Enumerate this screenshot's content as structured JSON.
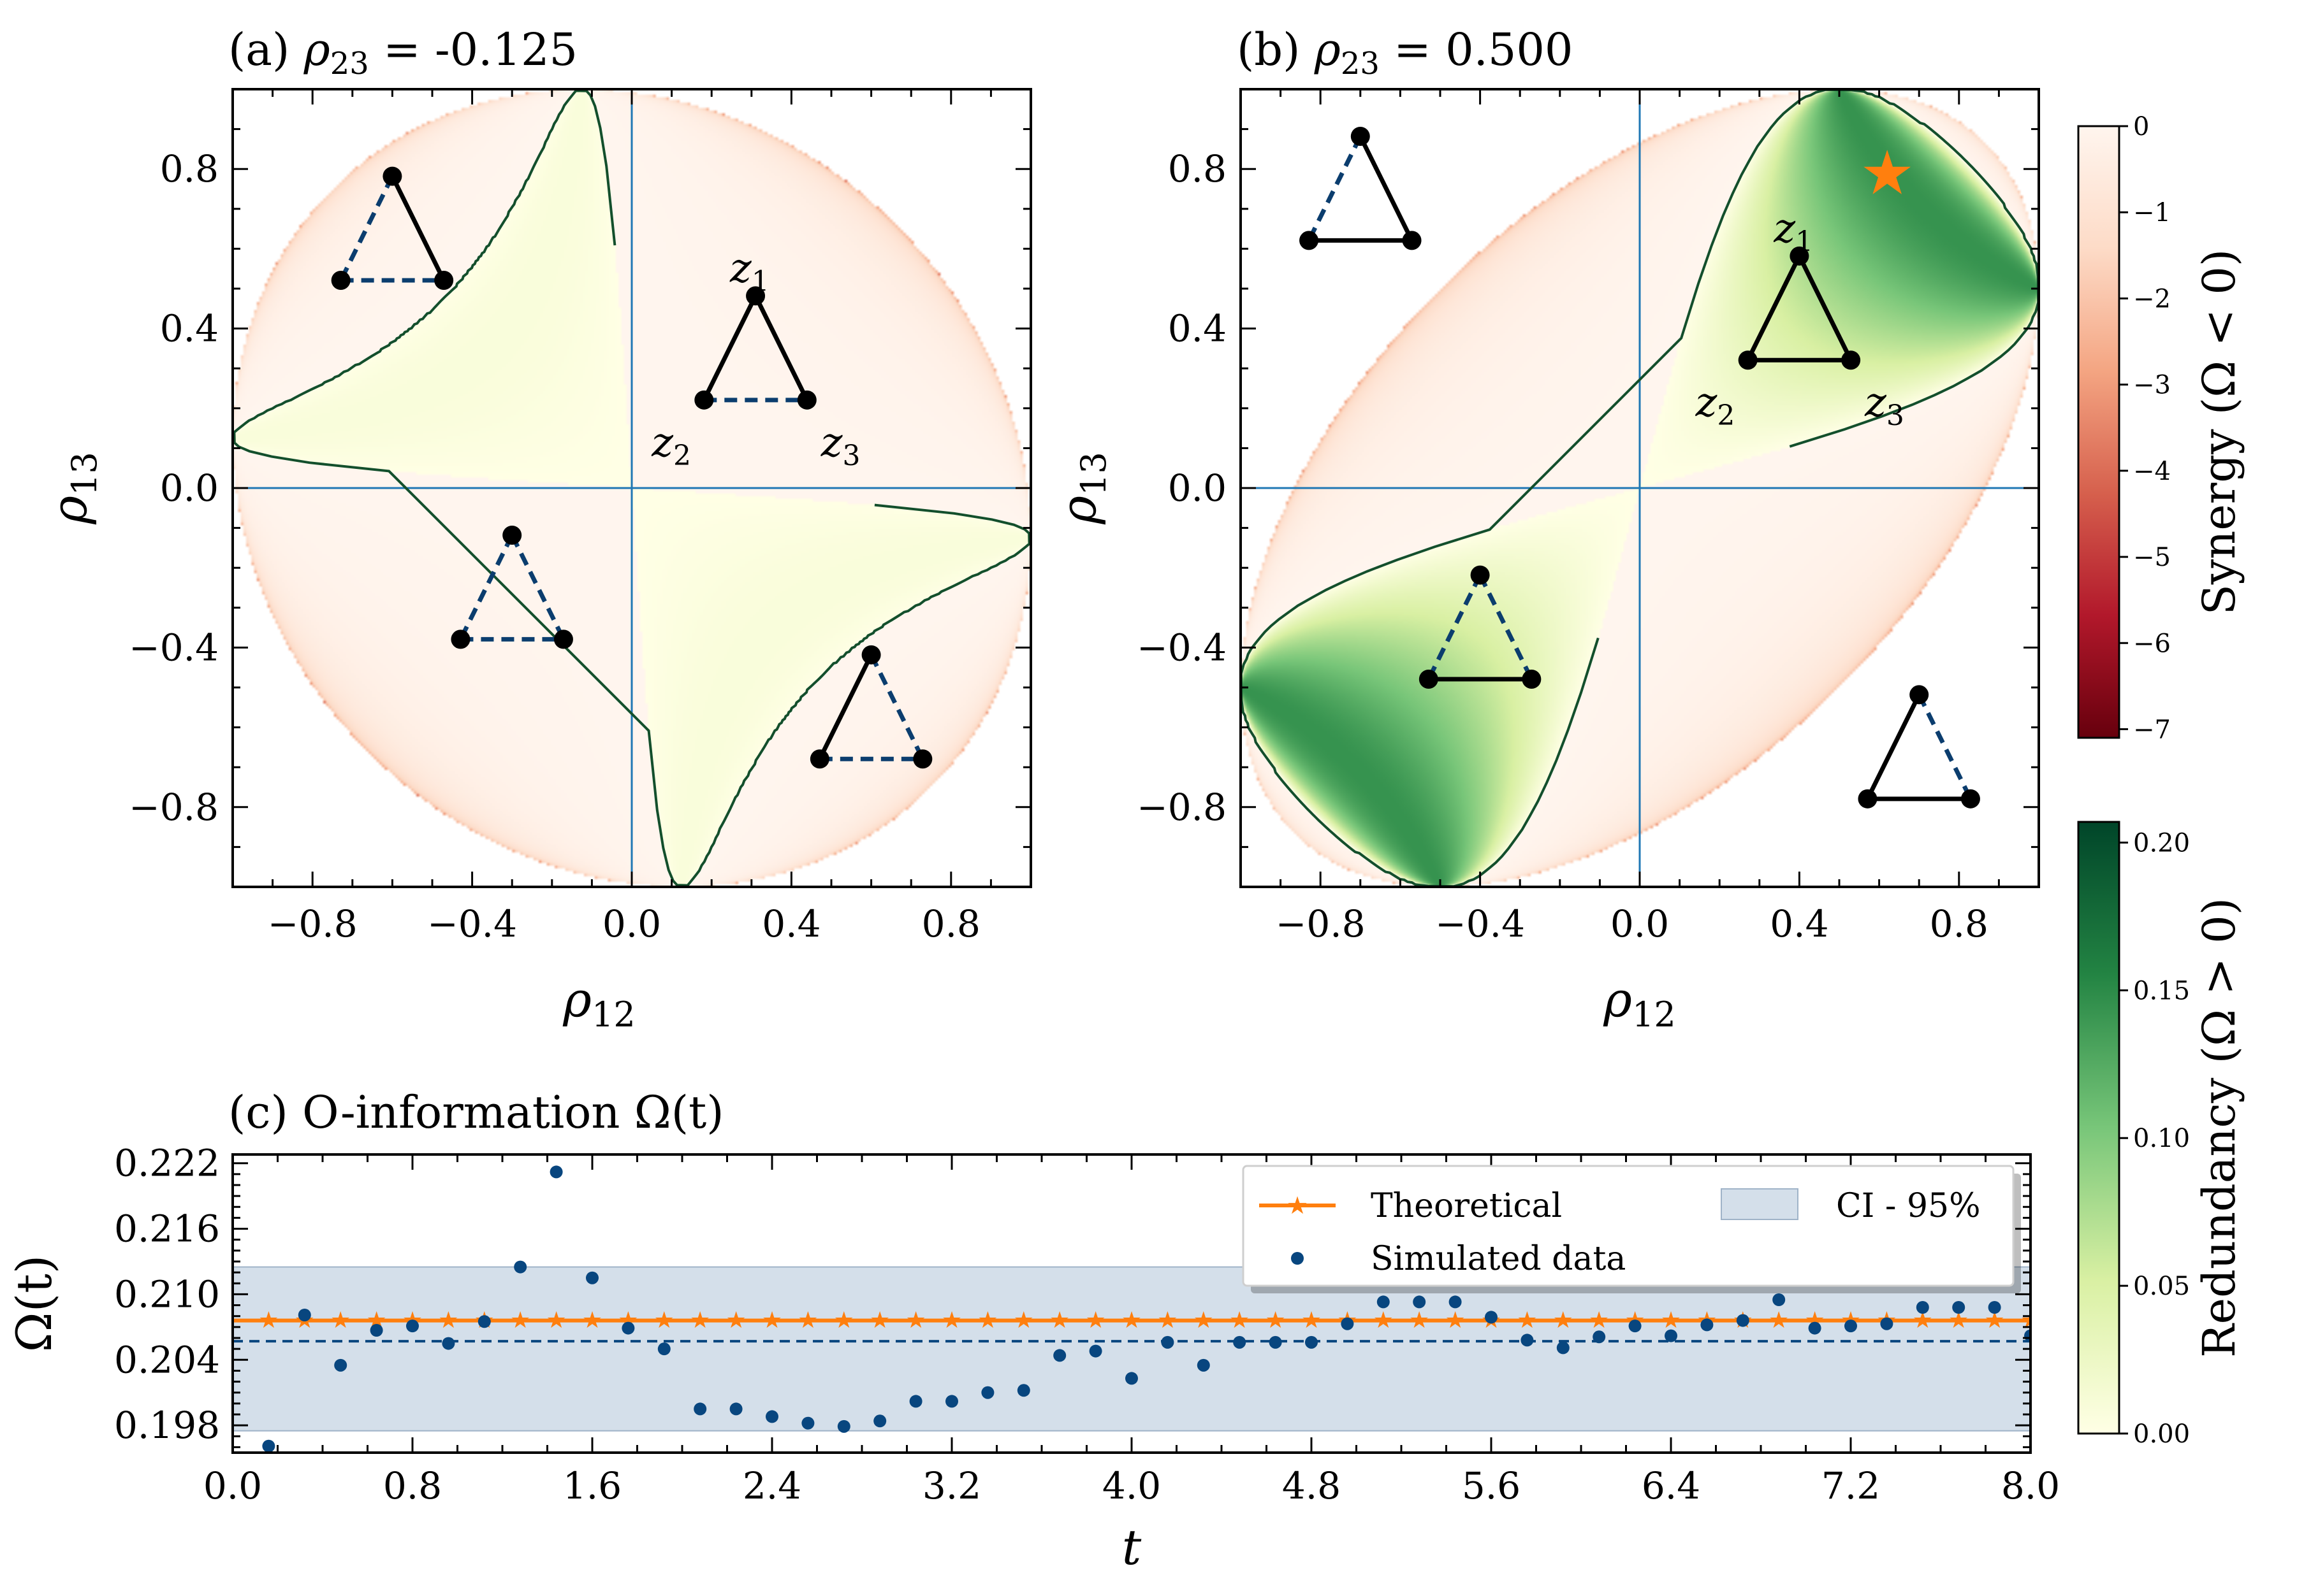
{
  "colors": {
    "synergy_stops": [
      "#67000d",
      "#b2182b",
      "#d6604d",
      "#f4a582",
      "#fddbc7",
      "#fff5ee"
    ],
    "redundancy_stops": [
      "#ffffe5",
      "#d9f0a3",
      "#78c679",
      "#238443",
      "#004529"
    ],
    "theory": "#ff7f0e",
    "sim": "#08467f",
    "axis_line": "#1f77b4",
    "boundary": "#134f2c"
  },
  "chart_data": [
    {
      "type": "heatmap",
      "title": "(a) ρ23 = -0.125",
      "title_prefix": "(a) ",
      "title_var": "ρ",
      "title_sub": "23",
      "title_value": " = -0.125",
      "rho23": -0.125,
      "xlabel": "ρ",
      "xlabel_sub": "12",
      "ylabel": "ρ",
      "ylabel_sub": "13",
      "xlim": [
        -1,
        1
      ],
      "ylim": [
        -1,
        1
      ],
      "xticks": [
        "−0.8",
        "−0.4",
        "0.0",
        "0.4",
        "0.8"
      ],
      "yticks": [
        "0.8",
        "0.4",
        "0.0",
        "−0.4",
        "−0.8"
      ],
      "tick_values": [
        -0.8,
        -0.4,
        0,
        0.4,
        0.8
      ],
      "node_labels": [
        "z1",
        "z2",
        "z3"
      ],
      "node_label_base": "z",
      "node_label_subs": [
        "1",
        "2",
        "3"
      ]
    },
    {
      "type": "heatmap",
      "title": "(b) ρ23 = 0.500",
      "title_prefix": "(b) ",
      "title_var": "ρ",
      "title_sub": "23",
      "title_value": " = 0.500",
      "rho23": 0.5,
      "xlabel": "ρ",
      "xlabel_sub": "12",
      "ylabel": "ρ",
      "ylabel_sub": "13",
      "xlim": [
        -1,
        1
      ],
      "ylim": [
        -1,
        1
      ],
      "xticks": [
        "−0.8",
        "−0.4",
        "0.0",
        "0.4",
        "0.8"
      ],
      "yticks": [
        "0.8",
        "0.4",
        "0.0",
        "−0.4",
        "−0.8"
      ],
      "tick_values": [
        -0.8,
        -0.4,
        0,
        0.4,
        0.8
      ],
      "node_labels": [
        "z1",
        "z2",
        "z3"
      ],
      "node_label_base": "z",
      "node_label_subs": [
        "1",
        "2",
        "3"
      ],
      "star_point": [
        0.62,
        0.79
      ]
    },
    {
      "type": "line",
      "title": "(c) O-information Ω(t)",
      "xlabel": "t",
      "ylabel": "Ω(t)",
      "xlim": [
        0,
        8
      ],
      "ylim": [
        0.1955,
        0.2228
      ],
      "xticks": [
        "0.0",
        "0.8",
        "1.6",
        "2.4",
        "3.2",
        "4.0",
        "4.8",
        "5.6",
        "6.4",
        "7.2",
        "8.0"
      ],
      "xtick_values": [
        0,
        0.8,
        1.6,
        2.4,
        3.2,
        4.0,
        4.8,
        5.6,
        6.4,
        7.2,
        8.0
      ],
      "yticks": [
        "0.222",
        "0.216",
        "0.210",
        "0.204",
        "0.198"
      ],
      "ytick_values": [
        0.222,
        0.216,
        0.21,
        0.204,
        0.198
      ],
      "series": [
        {
          "name": "Theoretical",
          "value": 0.2076,
          "x_start": 0.16,
          "x_step": 0.16,
          "n": 50
        },
        {
          "name": "Simulated data",
          "x": [
            0.16,
            0.32,
            0.48,
            0.64,
            0.8,
            0.96,
            1.12,
            1.28,
            1.44,
            1.6,
            1.76,
            1.92,
            2.08,
            2.24,
            2.4,
            2.56,
            2.72,
            2.88,
            3.04,
            3.2,
            3.36,
            3.52,
            3.68,
            3.84,
            4.0,
            4.16,
            4.32,
            4.48,
            4.64,
            4.8,
            4.96,
            5.12,
            5.28,
            5.44,
            5.6,
            5.76,
            5.92,
            6.08,
            6.24,
            6.4,
            6.56,
            6.72,
            6.88,
            7.04,
            7.2,
            7.36,
            7.52,
            7.68,
            7.84,
            8.0
          ],
          "values": [
            0.1961,
            0.2081,
            0.2035,
            0.2067,
            0.2071,
            0.2055,
            0.2075,
            0.2125,
            0.2212,
            0.2115,
            0.2069,
            0.205,
            0.1995,
            0.1995,
            0.1988,
            0.1982,
            0.1979,
            0.1984,
            0.2002,
            0.2002,
            0.201,
            0.2012,
            0.2044,
            0.2048,
            0.2023,
            0.2056,
            0.2035,
            0.2056,
            0.2056,
            0.2056,
            0.2073,
            0.2093,
            0.2093,
            0.2093,
            0.2079,
            0.2058,
            0.2051,
            0.2061,
            0.2071,
            0.2062,
            0.2072,
            0.2076,
            0.2095,
            0.2069,
            0.2071,
            0.2073,
            0.2088,
            0.2088,
            0.2088,
            0.2062
          ]
        },
        {
          "name": "Sample mean",
          "value": 0.2057
        },
        {
          "name": "CI - 95%",
          "range": [
            0.1975,
            0.2125
          ]
        }
      ],
      "legend": [
        "Theoretical",
        "CI - 95%",
        "Simulated data"
      ],
      "legend_placement": "top-right"
    }
  ],
  "colorbars": [
    {
      "label": "Synergy (Ω < 0)",
      "ticks": [
        "0",
        "−1",
        "−2",
        "−3",
        "−4",
        "−5",
        "−6",
        "−7"
      ],
      "tick_values": [
        0,
        -1,
        -2,
        -3,
        -4,
        -5,
        -6,
        -7
      ],
      "range": [
        -7.1,
        0
      ]
    },
    {
      "label": "Redundancy (Ω > 0)",
      "ticks": [
        "0.20",
        "0.15",
        "0.10",
        "0.05",
        "0.00"
      ],
      "tick_values": [
        0.2,
        0.15,
        0.1,
        0.05,
        0.0
      ],
      "range": [
        0,
        0.207
      ]
    }
  ]
}
